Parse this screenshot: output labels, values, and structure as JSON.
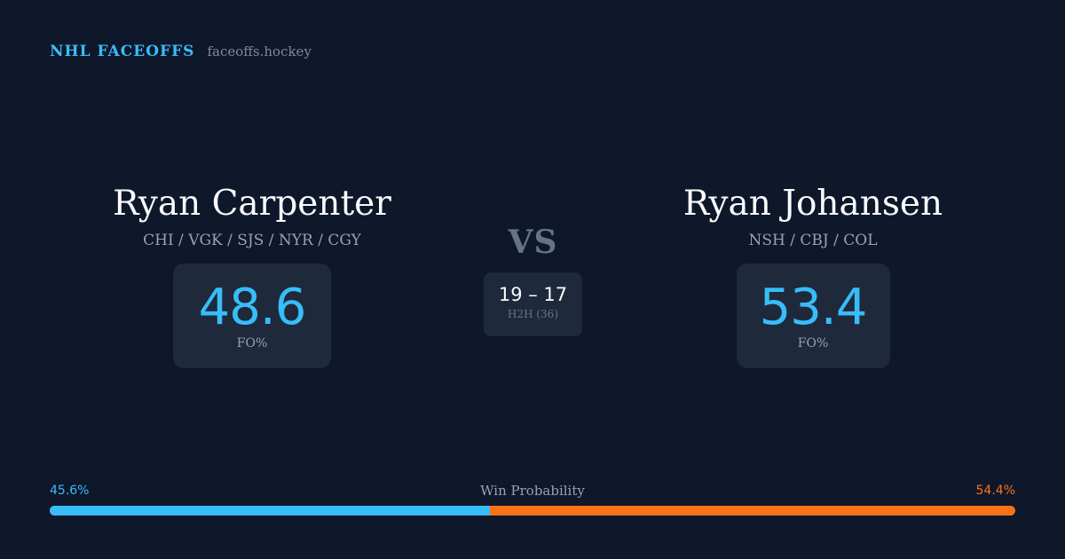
{
  "brand": {
    "title": "NHL FACEOFFS",
    "site": "faceoffs.hockey"
  },
  "left_player": {
    "name": "Ryan Carpenter",
    "teams": "CHI / VGK / SJS / NYR / CGY",
    "fo_value": "48.6",
    "fo_label": "FO%"
  },
  "right_player": {
    "name": "Ryan Johansen",
    "teams": "NSH / CBJ / COL",
    "fo_value": "53.4",
    "fo_label": "FO%"
  },
  "matchup": {
    "vs": "VS",
    "h2h_score": "19 – 17",
    "h2h_label": "H2H (36)"
  },
  "win_probability": {
    "title": "Win Probability",
    "left_label": "45.6%",
    "right_label": "54.4%",
    "left_fraction": 0.456,
    "left_color": "#38bdf8",
    "right_color": "#f97316"
  }
}
